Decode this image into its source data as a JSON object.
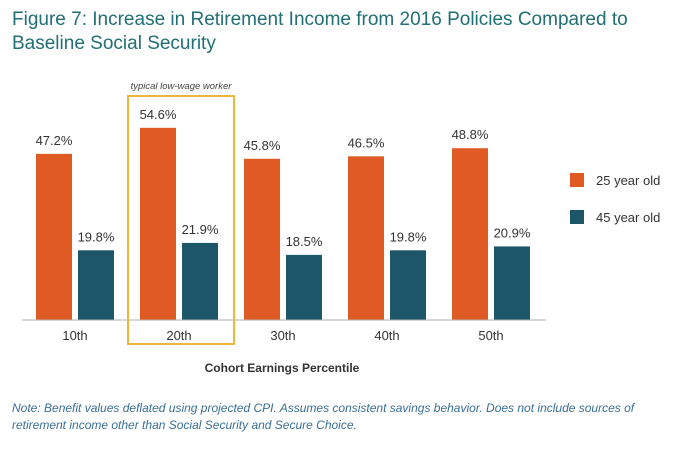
{
  "title": "Figure 7: Increase in Retirement Income from 2016 Policies Compared to Baseline Social Security",
  "note": "Note: Benefit values deflated using projected CPI. Assumes consistent savings behavior. Does not include sources of retirement income other than Social Security and Secure Choice.",
  "colors": {
    "series_25": "#e05a24",
    "series_45": "#1d5668",
    "highlight": "#f0b63a",
    "axis": "#b0b0b0"
  },
  "chart_data": {
    "type": "bar",
    "title": "Figure 7: Increase in Retirement Income from 2016 Policies Compared to Baseline Social Security",
    "xlabel": "Cohort Earnings Percentile",
    "ylabel": "",
    "categories": [
      "10th",
      "20th",
      "30th",
      "40th",
      "50th"
    ],
    "series": [
      {
        "name": "25 year old",
        "values": [
          47.2,
          54.6,
          45.8,
          46.5,
          48.8
        ],
        "labels": [
          "47.2%",
          "54.6%",
          "45.8%",
          "46.5%",
          "48.8%"
        ]
      },
      {
        "name": "45 year old",
        "values": [
          19.8,
          21.9,
          18.5,
          19.8,
          20.9
        ],
        "labels": [
          "19.8%",
          "21.9%",
          "18.5%",
          "19.8%",
          "20.9%"
        ]
      }
    ],
    "ylim": [
      0,
      60
    ],
    "grid": false,
    "legend": "right",
    "annotation": {
      "category": "20th",
      "text": "typical low-wage worker"
    }
  }
}
